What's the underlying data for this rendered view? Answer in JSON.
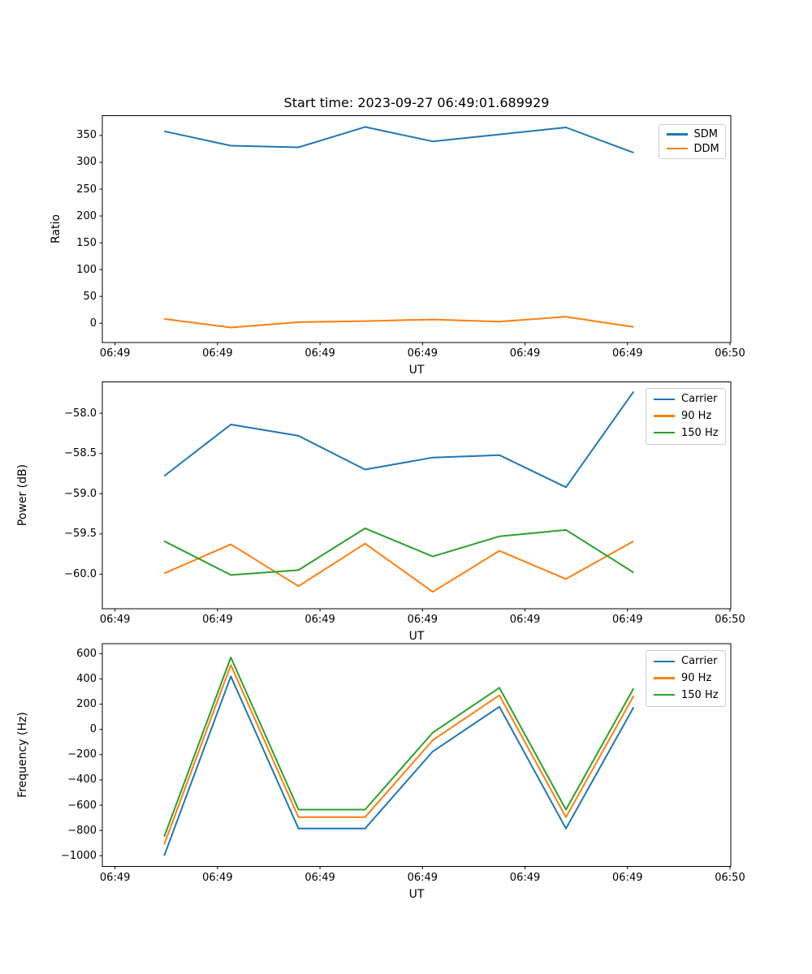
{
  "figure": {
    "title": "Start time: 2023-09-27 06:49:01.689929",
    "background": "#ffffff"
  },
  "colors": {
    "blue": "#1f77b4",
    "orange": "#ff7f0e",
    "green": "#2ca02c"
  },
  "chart_data": [
    {
      "type": "line",
      "title": "Start time: 2023-09-27 06:49:01.689929",
      "xlabel": "UT",
      "ylabel": "Ratio",
      "x_s": [
        4.8,
        11.3,
        17.9,
        24.4,
        31.0,
        37.5,
        44.0,
        50.6
      ],
      "xlim_s": [
        -1.24,
        60.08
      ],
      "ylim": [
        -36,
        387
      ],
      "x_ticks": {
        "positions_s": [
          0,
          10,
          20,
          30,
          40,
          50,
          60
        ],
        "labels": [
          "06:49",
          "06:49",
          "06:49",
          "06:49",
          "06:49",
          "06:49",
          "06:50"
        ]
      },
      "y_ticks": {
        "values": [
          0,
          50,
          100,
          150,
          200,
          250,
          300,
          350
        ],
        "labels": [
          "0",
          "50",
          "100",
          "150",
          "200",
          "250",
          "300",
          "350"
        ]
      },
      "legend_position": "upper right",
      "grid": false,
      "series": [
        {
          "name": "SDM",
          "color": "#1f77b4",
          "values": [
            358,
            331,
            328,
            366,
            339,
            352,
            365,
            318
          ]
        },
        {
          "name": "DDM",
          "color": "#ff7f0e",
          "values": [
            8,
            -8,
            2,
            4,
            7,
            3,
            12,
            -7
          ]
        }
      ]
    },
    {
      "type": "line",
      "title": "",
      "xlabel": "UT",
      "ylabel": "Power (dB)",
      "x_s": [
        4.8,
        11.3,
        17.9,
        24.4,
        31.0,
        37.5,
        44.0,
        50.6
      ],
      "xlim_s": [
        -1.24,
        60.08
      ],
      "ylim": [
        -60.43,
        -57.61
      ],
      "x_ticks": {
        "positions_s": [
          0,
          10,
          20,
          30,
          40,
          50,
          60
        ],
        "labels": [
          "06:49",
          "06:49",
          "06:49",
          "06:49",
          "06:49",
          "06:49",
          "06:50"
        ]
      },
      "y_ticks": {
        "values": [
          -58.0,
          -58.5,
          -59.0,
          -59.5,
          -60.0
        ],
        "labels": [
          "−58.0",
          "−58.5",
          "−59.0",
          "−59.5",
          "−60.0"
        ]
      },
      "legend_position": "upper right",
      "grid": false,
      "series": [
        {
          "name": "Carrier",
          "color": "#1f77b4",
          "values": [
            -58.78,
            -58.14,
            -58.28,
            -58.7,
            -58.55,
            -58.52,
            -58.92,
            -57.73
          ]
        },
        {
          "name": "90 Hz",
          "color": "#ff7f0e",
          "values": [
            -59.99,
            -59.63,
            -60.15,
            -59.62,
            -60.22,
            -59.71,
            -60.06,
            -59.59
          ]
        },
        {
          "name": "150 Hz",
          "color": "#2ca02c",
          "values": [
            -59.59,
            -60.01,
            -59.95,
            -59.43,
            -59.78,
            -59.53,
            -59.45,
            -59.98
          ]
        }
      ]
    },
    {
      "type": "line",
      "title": "",
      "xlabel": "UT",
      "ylabel": "Frequency (Hz)",
      "x_s": [
        4.8,
        11.3,
        17.9,
        24.4,
        31.0,
        37.5,
        44.0,
        50.6
      ],
      "xlim_s": [
        -1.24,
        60.08
      ],
      "ylim": [
        -1085,
        679
      ],
      "x_ticks": {
        "positions_s": [
          0,
          10,
          20,
          30,
          40,
          50,
          60
        ],
        "labels": [
          "06:49",
          "06:49",
          "06:49",
          "06:49",
          "06:49",
          "06:49",
          "06:50"
        ]
      },
      "y_ticks": {
        "values": [
          600,
          400,
          200,
          0,
          -200,
          -400,
          -600,
          -800,
          -1000
        ],
        "labels": [
          "600",
          "400",
          "200",
          "0",
          "−200",
          "−400",
          "−600",
          "−800",
          "−1000"
        ]
      },
      "legend_position": "upper right",
      "grid": false,
      "series": [
        {
          "name": "Carrier",
          "color": "#1f77b4",
          "values": [
            -1000,
            420,
            -785,
            -785,
            -175,
            180,
            -785,
            175
          ]
        },
        {
          "name": "90 Hz",
          "color": "#ff7f0e",
          "values": [
            -910,
            510,
            -695,
            -695,
            -85,
            270,
            -695,
            265
          ]
        },
        {
          "name": "150 Hz",
          "color": "#2ca02c",
          "values": [
            -850,
            570,
            -635,
            -635,
            -25,
            330,
            -635,
            325
          ]
        }
      ]
    }
  ]
}
